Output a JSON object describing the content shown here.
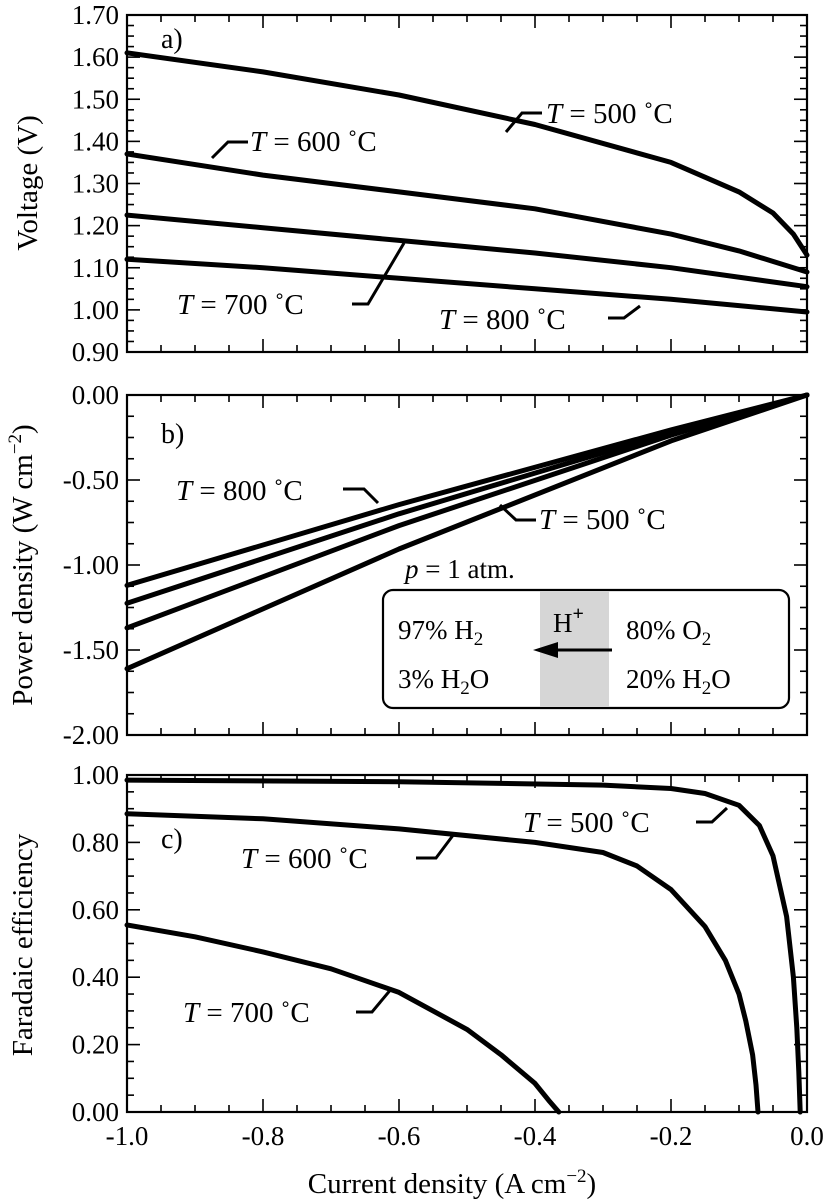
{
  "chart_data": [
    {
      "panel": "a)",
      "type": "line",
      "ylabel": "Voltage (V)",
      "xlim": [
        -1.0,
        0.0
      ],
      "ylim": [
        0.9,
        1.7
      ],
      "y_ticks": [
        "0.90",
        "1.00",
        "1.10",
        "1.20",
        "1.30",
        "1.40",
        "1.50",
        "1.60",
        "1.70"
      ],
      "series": [
        {
          "name": "T = 500 °C",
          "x": [
            -1.0,
            -0.8,
            -0.6,
            -0.4,
            -0.2,
            -0.1,
            -0.05,
            -0.02,
            0.0
          ],
          "y": [
            1.61,
            1.565,
            1.51,
            1.44,
            1.35,
            1.28,
            1.23,
            1.18,
            1.13
          ]
        },
        {
          "name": "T = 600 °C",
          "x": [
            -1.0,
            -0.8,
            -0.6,
            -0.4,
            -0.2,
            -0.1,
            0.0
          ],
          "y": [
            1.37,
            1.32,
            1.28,
            1.24,
            1.18,
            1.14,
            1.09
          ]
        },
        {
          "name": "T = 700 °C",
          "x": [
            -1.0,
            -0.8,
            -0.6,
            -0.4,
            -0.2,
            0.0
          ],
          "y": [
            1.225,
            1.195,
            1.165,
            1.135,
            1.1,
            1.055
          ]
        },
        {
          "name": "T = 800 °C",
          "x": [
            -1.0,
            -0.8,
            -0.6,
            -0.4,
            -0.2,
            0.0
          ],
          "y": [
            1.12,
            1.1,
            1.075,
            1.05,
            1.025,
            0.995
          ]
        }
      ]
    },
    {
      "panel": "b)",
      "type": "line",
      "ylabel": "Power density (W cm⁻²)",
      "xlim": [
        -1.0,
        0.0
      ],
      "ylim": [
        -2.0,
        0.0
      ],
      "y_ticks": [
        "-2.00",
        "-1.50",
        "-1.00",
        "-0.50",
        "0.00"
      ],
      "series": [
        {
          "name": "T = 500 °C",
          "x": [
            -1.0,
            -0.6,
            -0.2,
            0.0
          ],
          "y": [
            -1.61,
            -0.906,
            -0.27,
            0.0
          ]
        },
        {
          "name": "T = 600 °C",
          "x": [
            -1.0,
            -0.6,
            -0.2,
            0.0
          ],
          "y": [
            -1.37,
            -0.768,
            -0.236,
            0.0
          ]
        },
        {
          "name": "T = 700 °C",
          "x": [
            -1.0,
            -0.6,
            -0.2,
            0.0
          ],
          "y": [
            -1.225,
            -0.699,
            -0.22,
            0.0
          ]
        },
        {
          "name": "T = 800 °C",
          "x": [
            -1.0,
            -0.6,
            -0.2,
            0.0
          ],
          "y": [
            -1.12,
            -0.645,
            -0.205,
            0.0
          ]
        }
      ]
    },
    {
      "panel": "c)",
      "type": "line",
      "ylabel": "Faradaic efficiency",
      "xlabel": "Current density (A cm⁻²)",
      "xlim": [
        -1.0,
        0.0
      ],
      "ylim": [
        0.0,
        1.0
      ],
      "x_ticks": [
        "-1.0",
        "-0.8",
        "-0.6",
        "-0.4",
        "-0.2",
        "0.0"
      ],
      "y_ticks": [
        "0.00",
        "0.20",
        "0.40",
        "0.60",
        "0.80",
        "1.00"
      ],
      "series": [
        {
          "name": "T = 500 °C",
          "x": [
            -1.0,
            -0.6,
            -0.3,
            -0.2,
            -0.15,
            -0.1,
            -0.07,
            -0.05,
            -0.03,
            -0.02,
            -0.015,
            -0.012,
            -0.01
          ],
          "y": [
            0.985,
            0.98,
            0.97,
            0.96,
            0.945,
            0.91,
            0.85,
            0.76,
            0.58,
            0.4,
            0.25,
            0.12,
            0.0
          ]
        },
        {
          "name": "T = 600 °C",
          "x": [
            -1.0,
            -0.8,
            -0.6,
            -0.4,
            -0.3,
            -0.25,
            -0.2,
            -0.15,
            -0.12,
            -0.1,
            -0.09,
            -0.08,
            -0.075,
            -0.072
          ],
          "y": [
            0.885,
            0.87,
            0.84,
            0.8,
            0.77,
            0.73,
            0.66,
            0.55,
            0.45,
            0.35,
            0.27,
            0.17,
            0.08,
            0.0
          ]
        },
        {
          "name": "T = 700 °C",
          "x": [
            -1.0,
            -0.9,
            -0.8,
            -0.7,
            -0.6,
            -0.5,
            -0.45,
            -0.4,
            -0.38,
            -0.365
          ],
          "y": [
            0.555,
            0.52,
            0.475,
            0.425,
            0.355,
            0.245,
            0.17,
            0.085,
            0.035,
            0.0
          ]
        }
      ]
    }
  ],
  "annotations": {
    "pressure_italic": "p",
    "pressure_text": " = 1 atm.",
    "anode_line1": "97% H",
    "anode_line2_pre": "3% H",
    "anode_line2_post": "O",
    "cathode_line1": "80% O",
    "cathode_line2_pre": "20% H",
    "cathode_line2_post": "O",
    "subscript_two": "2",
    "ion": "H",
    "ion_charge": "+",
    "temp_var": "T",
    "temp_eq_500": " = 500 ˚C",
    "temp_eq_600": " = 600 ˚C",
    "temp_eq_700": " = 700 ˚C",
    "temp_eq_800": " = 800 ˚C"
  }
}
